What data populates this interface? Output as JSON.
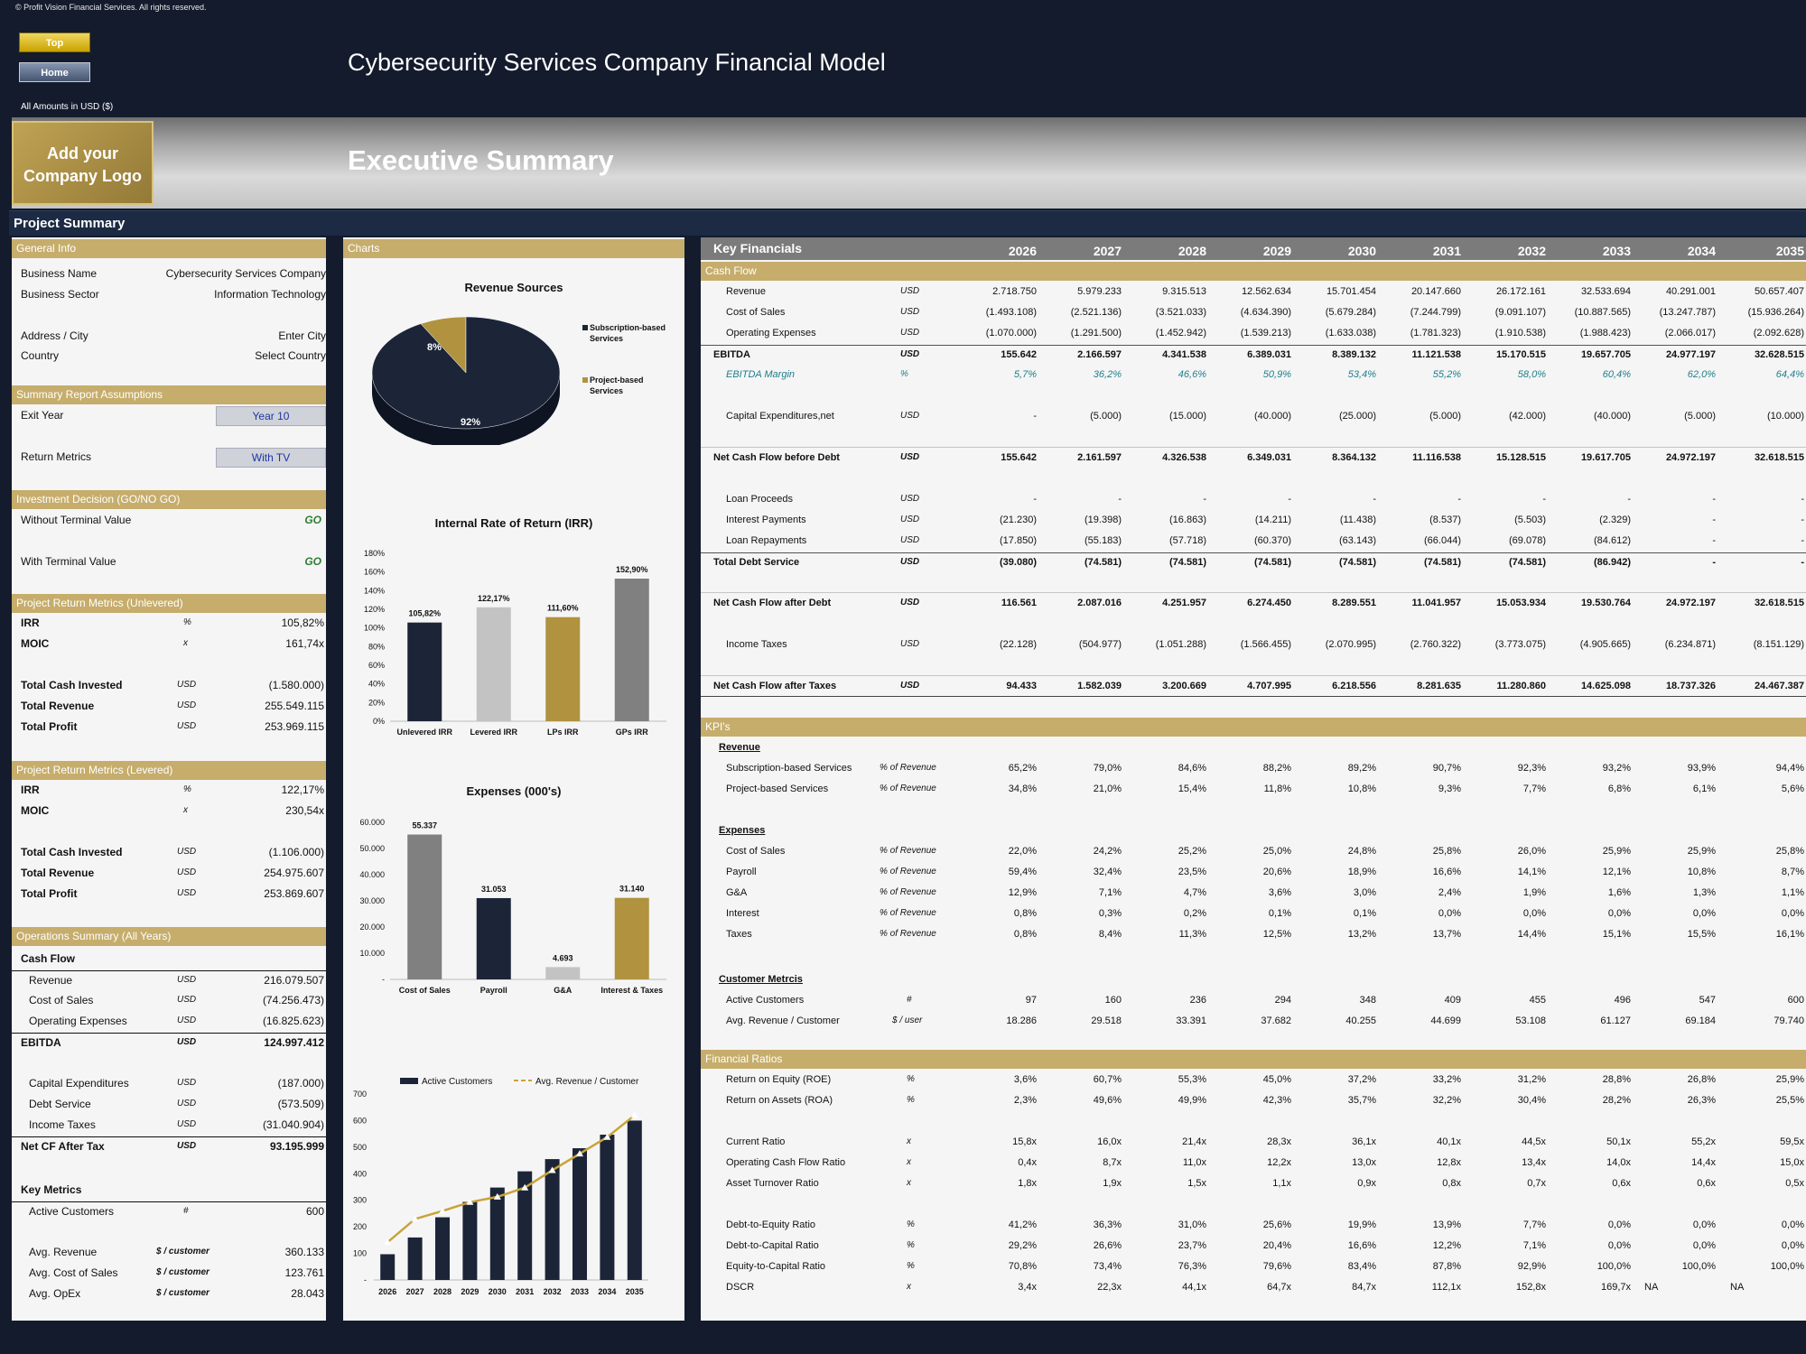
{
  "copyright": "© Profit Vision Financial Services. All rights reserved.",
  "nav": {
    "top": "Top",
    "home": "Home"
  },
  "model_title": "Cybersecurity Services Company Financial Model",
  "amounts": "All Amounts in  USD ($)",
  "logo": "Add your Company Logo",
  "sheet_title": "Executive Summary",
  "project_summary": "Project Summary",
  "general": {
    "header": "General Info",
    "rows": [
      [
        "Business Name",
        "Cybersecurity Services Company"
      ],
      [
        "Business Sector",
        "Information Technology"
      ],
      [
        "Address / City",
        "Enter City"
      ],
      [
        "Country",
        "Select Country"
      ]
    ]
  },
  "assumptions": {
    "header": "Summary  Report Assumptions",
    "exit_year_label": "Exit Year",
    "exit_year": "Year 10",
    "return_metrics_label": "Return Metrics",
    "return_metrics": "With TV"
  },
  "decision": {
    "header": "Investment Decision (GO/NO GO)",
    "without_tv": "Without Terminal Value",
    "with_tv": "With Terminal Value",
    "go": "GO"
  },
  "unlevered": {
    "header": "Project Return Metrics (Unlevered)",
    "irr": [
      "IRR",
      "%",
      "105,82%"
    ],
    "moic": [
      "MOIC",
      "x",
      "161,74x"
    ],
    "invested": [
      "Total Cash Invested",
      "USD",
      "(1.580.000)"
    ],
    "revenue": [
      "Total Revenue",
      "USD",
      "255.549.115"
    ],
    "profit": [
      "Total Profit",
      "USD",
      "253.969.115"
    ]
  },
  "levered": {
    "header": "Project Return Metrics (Levered)",
    "irr": [
      "IRR",
      "%",
      "122,17%"
    ],
    "moic": [
      "MOIC",
      "x",
      "230,54x"
    ],
    "invested": [
      "Total Cash Invested",
      "USD",
      "(1.106.000)"
    ],
    "revenue": [
      "Total Revenue",
      "USD",
      "254.975.607"
    ],
    "profit": [
      "Total Profit",
      "USD",
      "253.869.607"
    ]
  },
  "ops": {
    "header": "Operations Summary (All Years)",
    "cash_flow": "Cash Flow",
    "revenue": [
      "Revenue",
      "USD",
      "216.079.507"
    ],
    "cos": [
      "Cost of Sales",
      "USD",
      "(74.256.473)"
    ],
    "opex": [
      "Operating Expenses",
      "USD",
      "(16.825.623)"
    ],
    "ebitda": [
      "EBITDA",
      "USD",
      "124.997.412"
    ],
    "capex": [
      "Capital Expenditures",
      "USD",
      "(187.000)"
    ],
    "debt": [
      "Debt Service",
      "USD",
      "(573.509)"
    ],
    "tax": [
      "Income Taxes",
      "USD",
      "(31.040.904)"
    ],
    "netcf": [
      "Net CF After Tax",
      "USD",
      "93.195.999"
    ],
    "key_metrics": "Key Metrics",
    "customers": [
      "Active Customers",
      "#",
      "600"
    ],
    "avg_rev": [
      "Avg. Revenue",
      "$ / customer",
      "360.133"
    ],
    "avg_cos": [
      "Avg. Cost of Sales",
      "$ / customer",
      "123.761"
    ],
    "avg_opex": [
      "Avg. OpEx",
      "$ / customer",
      "28.043"
    ]
  },
  "charts_header": "Charts",
  "chart_data": [
    {
      "type": "pie",
      "title": "Revenue Sources",
      "labels": [
        "Subscription-based Services",
        "Project-based Services"
      ],
      "values": [
        92,
        8
      ],
      "data_labels": [
        "92%",
        "8%"
      ],
      "colors": [
        "#1c2538",
        "#b0923f"
      ],
      "legend": "right"
    },
    {
      "type": "bar",
      "title": "Internal Rate of Return (IRR)",
      "categories": [
        "Unlevered IRR",
        "Levered IRR",
        "LPs IRR",
        "GPs IRR"
      ],
      "values": [
        105.82,
        122.17,
        111.6,
        152.9
      ],
      "data_labels": [
        "105,82%",
        "122,17%",
        "111,60%",
        "152,90%"
      ],
      "colors": [
        "#1c2538",
        "#c3c3c3",
        "#b0923f",
        "#808080"
      ],
      "ylim": [
        0,
        180
      ],
      "ticks": [
        "0%",
        "20%",
        "40%",
        "60%",
        "80%",
        "100%",
        "120%",
        "140%",
        "160%",
        "180%"
      ]
    },
    {
      "type": "bar",
      "title": "Expenses (000's)",
      "categories": [
        "Cost of Sales",
        "Payroll",
        "G&A",
        "Interest & Taxes"
      ],
      "values": [
        55337,
        31053,
        4693,
        31140
      ],
      "data_labels": [
        "55.337",
        "31.053",
        "4.693",
        "31.140"
      ],
      "colors": [
        "#808080",
        "#1c2538",
        "#c3c3c3",
        "#b0923f"
      ],
      "ylim": [
        0,
        60000
      ],
      "ticks": [
        "-",
        "10.000",
        "20.000",
        "30.000",
        "40.000",
        "50.000",
        "60.000"
      ]
    },
    {
      "type": "bar",
      "title": "",
      "categories": [
        "2026",
        "2027",
        "2028",
        "2029",
        "2030",
        "2031",
        "2032",
        "2033",
        "2034",
        "2035"
      ],
      "series": [
        {
          "name": "Active Customers",
          "values": [
            97,
            160,
            236,
            294,
            348,
            409,
            455,
            496,
            547,
            600
          ]
        },
        {
          "name": "Avg. Revenue / Customer",
          "values": [
            18286,
            29518,
            33391,
            37682,
            40255,
            44699,
            53108,
            61127,
            69184,
            79740
          ]
        }
      ],
      "ylim": [
        0,
        700
      ],
      "ticks": [
        "-",
        "100",
        "200",
        "300",
        "400",
        "500",
        "600",
        "700"
      ],
      "legend": "top"
    }
  ],
  "kf": {
    "title": "Key Financials",
    "years": [
      "2026",
      "2027",
      "2028",
      "2029",
      "2030",
      "2031",
      "2032",
      "2033",
      "2034",
      "2035"
    ],
    "cash_flow": "Cash Flow",
    "rows": [
      {
        "label": "Revenue",
        "unit": "USD",
        "vals": [
          "2.718.750",
          "5.979.233",
          "9.315.513",
          "12.562.634",
          "15.701.454",
          "20.147.660",
          "26.172.161",
          "32.533.694",
          "40.291.001",
          "50.657.407"
        ]
      },
      {
        "label": "Cost of Sales",
        "unit": "USD",
        "vals": [
          "(1.493.108)",
          "(2.521.136)",
          "(3.521.033)",
          "(4.634.390)",
          "(5.679.284)",
          "(7.244.799)",
          "(9.091.107)",
          "(10.887.565)",
          "(13.247.787)",
          "(15.936.264)"
        ]
      },
      {
        "label": "Operating Expenses",
        "unit": "USD",
        "vals": [
          "(1.070.000)",
          "(1.291.500)",
          "(1.452.942)",
          "(1.539.213)",
          "(1.633.038)",
          "(1.781.323)",
          "(1.910.538)",
          "(1.988.423)",
          "(2.066.017)",
          "(2.092.628)"
        ]
      },
      {
        "label": "EBITDA",
        "unit": "USD",
        "vals": [
          "155.642",
          "2.166.597",
          "4.341.538",
          "6.389.031",
          "8.389.132",
          "11.121.538",
          "15.170.515",
          "19.657.705",
          "24.977.197",
          "32.628.515"
        ]
      },
      {
        "label": "EBITDA Margin",
        "unit": "%",
        "vals": [
          "5,7%",
          "36,2%",
          "46,6%",
          "50,9%",
          "53,4%",
          "55,2%",
          "58,0%",
          "60,4%",
          "62,0%",
          "64,4%"
        ]
      },
      {
        "label": "Capital Expenditures,net",
        "unit": "USD",
        "vals": [
          "-",
          "(5.000)",
          "(15.000)",
          "(40.000)",
          "(25.000)",
          "(5.000)",
          "(42.000)",
          "(40.000)",
          "(5.000)",
          "(10.000)"
        ]
      },
      {
        "label": "Net Cash Flow before Debt",
        "unit": "USD",
        "vals": [
          "155.642",
          "2.161.597",
          "4.326.538",
          "6.349.031",
          "8.364.132",
          "11.116.538",
          "15.128.515",
          "19.617.705",
          "24.972.197",
          "32.618.515"
        ]
      },
      {
        "label": "Loan Proceeds",
        "unit": "USD",
        "vals": [
          "-",
          "-",
          "-",
          "-",
          "-",
          "-",
          "-",
          "-",
          "-",
          "-"
        ]
      },
      {
        "label": "Interest Payments",
        "unit": "USD",
        "vals": [
          "(21.230)",
          "(19.398)",
          "(16.863)",
          "(14.211)",
          "(11.438)",
          "(8.537)",
          "(5.503)",
          "(2.329)",
          "-",
          "-"
        ]
      },
      {
        "label": "Loan Repayments",
        "unit": "USD",
        "vals": [
          "(17.850)",
          "(55.183)",
          "(57.718)",
          "(60.370)",
          "(63.143)",
          "(66.044)",
          "(69.078)",
          "(84.612)",
          "-",
          "-"
        ]
      },
      {
        "label": "Total Debt Service",
        "unit": "USD",
        "vals": [
          "(39.080)",
          "(74.581)",
          "(74.581)",
          "(74.581)",
          "(74.581)",
          "(74.581)",
          "(74.581)",
          "(86.942)",
          "-",
          "-"
        ]
      },
      {
        "label": "Net Cash Flow after Debt",
        "unit": "USD",
        "vals": [
          "116.561",
          "2.087.016",
          "4.251.957",
          "6.274.450",
          "8.289.551",
          "11.041.957",
          "15.053.934",
          "19.530.764",
          "24.972.197",
          "32.618.515"
        ]
      },
      {
        "label": "Income Taxes",
        "unit": "USD",
        "vals": [
          "(22.128)",
          "(504.977)",
          "(1.051.288)",
          "(1.566.455)",
          "(2.070.995)",
          "(2.760.322)",
          "(3.773.075)",
          "(4.905.665)",
          "(6.234.871)",
          "(8.151.129)"
        ]
      },
      {
        "label": "Net Cash Flow after Taxes",
        "unit": "USD",
        "vals": [
          "94.433",
          "1.582.039",
          "3.200.669",
          "4.707.995",
          "6.218.556",
          "8.281.635",
          "11.280.860",
          "14.625.098",
          "18.737.326",
          "24.467.387"
        ]
      }
    ],
    "kpis": "KPI's",
    "revenue_h": "Revenue",
    "kpi_rev": [
      {
        "label": "Subscription-based Services",
        "unit": "% of Revenue",
        "vals": [
          "65,2%",
          "79,0%",
          "84,6%",
          "88,2%",
          "89,2%",
          "90,7%",
          "92,3%",
          "93,2%",
          "93,9%",
          "94,4%"
        ]
      },
      {
        "label": "Project-based Services",
        "unit": "% of Revenue",
        "vals": [
          "34,8%",
          "21,0%",
          "15,4%",
          "11,8%",
          "10,8%",
          "9,3%",
          "7,7%",
          "6,8%",
          "6,1%",
          "5,6%"
        ]
      }
    ],
    "expenses_h": "Expenses",
    "kpi_exp": [
      {
        "label": "Cost of Sales",
        "unit": "% of Revenue",
        "vals": [
          "22,0%",
          "24,2%",
          "25,2%",
          "25,0%",
          "24,8%",
          "25,8%",
          "26,0%",
          "25,9%",
          "25,9%",
          "25,8%"
        ]
      },
      {
        "label": "Payroll",
        "unit": "% of Revenue",
        "vals": [
          "59,4%",
          "32,4%",
          "23,5%",
          "20,6%",
          "18,9%",
          "16,6%",
          "14,1%",
          "12,1%",
          "10,8%",
          "8,7%"
        ]
      },
      {
        "label": "G&A",
        "unit": "% of Revenue",
        "vals": [
          "12,9%",
          "7,1%",
          "4,7%",
          "3,6%",
          "3,0%",
          "2,4%",
          "1,9%",
          "1,6%",
          "1,3%",
          "1,1%"
        ]
      },
      {
        "label": "Interest",
        "unit": "% of Revenue",
        "vals": [
          "0,8%",
          "0,3%",
          "0,2%",
          "0,1%",
          "0,1%",
          "0,0%",
          "0,0%",
          "0,0%",
          "0,0%",
          "0,0%"
        ]
      },
      {
        "label": "Taxes",
        "unit": "% of Revenue",
        "vals": [
          "0,8%",
          "8,4%",
          "11,3%",
          "12,5%",
          "13,2%",
          "13,7%",
          "14,4%",
          "15,1%",
          "15,5%",
          "16,1%"
        ]
      }
    ],
    "customer_h": "Customer Metrcis",
    "kpi_cust": [
      {
        "label": "Active Customers",
        "unit": "#",
        "vals": [
          "97",
          "160",
          "236",
          "294",
          "348",
          "409",
          "455",
          "496",
          "547",
          "600"
        ]
      },
      {
        "label": "Avg. Revenue / Customer",
        "unit": "$ / user",
        "vals": [
          "18.286",
          "29.518",
          "33.391",
          "37.682",
          "40.255",
          "44.699",
          "53.108",
          "61.127",
          "69.184",
          "79.740"
        ]
      }
    ],
    "ratios_h": "Financial Ratios",
    "ratios": [
      {
        "label": "Return on Equity (ROE)",
        "unit": "%",
        "vals": [
          "3,6%",
          "60,7%",
          "55,3%",
          "45,0%",
          "37,2%",
          "33,2%",
          "31,2%",
          "28,8%",
          "26,8%",
          "25,9%"
        ]
      },
      {
        "label": "Return on Assets (ROA)",
        "unit": "%",
        "vals": [
          "2,3%",
          "49,6%",
          "49,9%",
          "42,3%",
          "35,7%",
          "32,2%",
          "30,4%",
          "28,2%",
          "26,3%",
          "25,5%"
        ]
      },
      {
        "label": "Current Ratio",
        "unit": "x",
        "vals": [
          "15,8x",
          "16,0x",
          "21,4x",
          "28,3x",
          "36,1x",
          "40,1x",
          "44,5x",
          "50,1x",
          "55,2x",
          "59,5x"
        ]
      },
      {
        "label": "Operating Cash Flow Ratio",
        "unit": "x",
        "vals": [
          "0,4x",
          "8,7x",
          "11,0x",
          "12,2x",
          "13,0x",
          "12,8x",
          "13,4x",
          "14,0x",
          "14,4x",
          "15,0x"
        ]
      },
      {
        "label": "Asset Turnover Ratio",
        "unit": "x",
        "vals": [
          "1,8x",
          "1,9x",
          "1,5x",
          "1,1x",
          "0,9x",
          "0,8x",
          "0,7x",
          "0,6x",
          "0,6x",
          "0,5x"
        ]
      },
      {
        "label": "Debt-to-Equity Ratio",
        "unit": "%",
        "vals": [
          "41,2%",
          "36,3%",
          "31,0%",
          "25,6%",
          "19,9%",
          "13,9%",
          "7,7%",
          "0,0%",
          "0,0%",
          "0,0%"
        ]
      },
      {
        "label": "Debt-to-Capital Ratio",
        "unit": "%",
        "vals": [
          "29,2%",
          "26,6%",
          "23,7%",
          "20,4%",
          "16,6%",
          "12,2%",
          "7,1%",
          "0,0%",
          "0,0%",
          "0,0%"
        ]
      },
      {
        "label": "Equity-to-Capital Ratio",
        "unit": "%",
        "vals": [
          "70,8%",
          "73,4%",
          "76,3%",
          "79,6%",
          "83,4%",
          "87,8%",
          "92,9%",
          "100,0%",
          "100,0%",
          "100,0%"
        ]
      },
      {
        "label": "DSCR",
        "unit": "x",
        "vals": [
          "3,4x",
          "22,3x",
          "44,1x",
          "64,7x",
          "84,7x",
          "112,1x",
          "152,8x",
          "169,7x",
          "",
          ""
        ]
      }
    ],
    "na": [
      "NA",
      "NA"
    ]
  }
}
